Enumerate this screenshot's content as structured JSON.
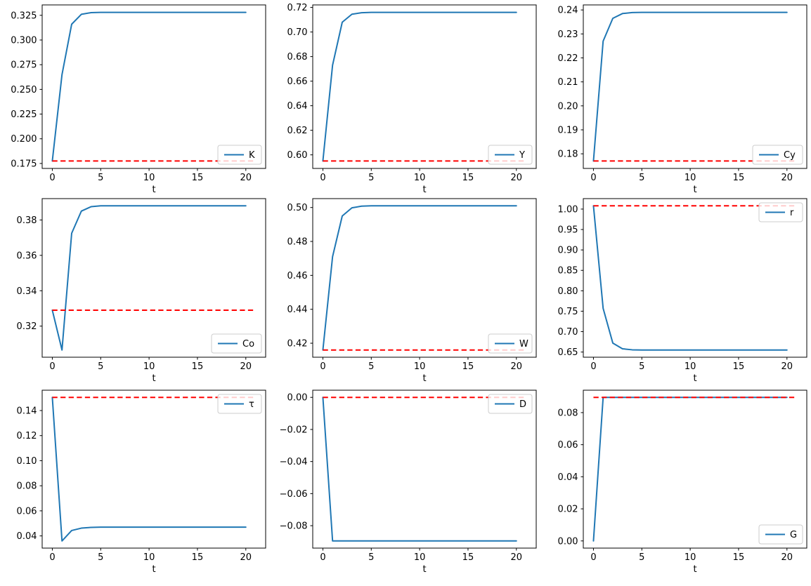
{
  "chart_data": {
    "type": "line",
    "xlabel": "t",
    "x": [
      0,
      1,
      2,
      3,
      4,
      5,
      6,
      7,
      8,
      9,
      10,
      11,
      12,
      13,
      14,
      15,
      16,
      17,
      18,
      19,
      20
    ],
    "xticks": [
      0,
      5,
      10,
      15,
      20
    ],
    "xlim": [
      -1.05,
      22.05
    ],
    "ref_line_x": [
      0,
      21
    ],
    "line_color": "#1f77b4",
    "ref_color": "#ff0000",
    "legend_order": [
      "series",
      "reference"
    ],
    "subplots": [
      {
        "name": "K",
        "legend_label": "K",
        "legend_loc": "lower right",
        "ydecimals": 3,
        "yticks": [
          0.175,
          0.2,
          0.225,
          0.25,
          0.275,
          0.3,
          0.325
        ],
        "ylim": [
          0.16998,
          0.33553
        ],
        "ref": 0.1775,
        "values": [
          0.1775,
          0.265,
          0.316,
          0.326,
          0.3277,
          0.328,
          0.328,
          0.328,
          0.328,
          0.328,
          0.328,
          0.328,
          0.328,
          0.328,
          0.328,
          0.328,
          0.328,
          0.328,
          0.328,
          0.328,
          0.328
        ]
      },
      {
        "name": "Y",
        "legend_label": "Y",
        "legend_loc": "lower right",
        "ydecimals": 2,
        "yticks": [
          0.6,
          0.62,
          0.64,
          0.66,
          0.68,
          0.7,
          0.72
        ],
        "ylim": [
          0.58895,
          0.72205
        ],
        "ref": 0.595,
        "values": [
          0.595,
          0.673,
          0.708,
          0.7145,
          0.7157,
          0.716,
          0.716,
          0.716,
          0.716,
          0.716,
          0.716,
          0.716,
          0.716,
          0.716,
          0.716,
          0.716,
          0.716,
          0.716,
          0.716,
          0.716,
          0.716
        ]
      },
      {
        "name": "Cy",
        "legend_label": "Cy",
        "legend_loc": "lower right",
        "ydecimals": 2,
        "yticks": [
          0.18,
          0.19,
          0.2,
          0.21,
          0.22,
          0.23,
          0.24
        ],
        "ylim": [
          0.1739,
          0.2421
        ],
        "ref": 0.177,
        "values": [
          0.177,
          0.227,
          0.2365,
          0.2385,
          0.2389,
          0.239,
          0.239,
          0.239,
          0.239,
          0.239,
          0.239,
          0.239,
          0.239,
          0.239,
          0.239,
          0.239,
          0.239,
          0.239,
          0.239,
          0.239,
          0.239
        ]
      },
      {
        "name": "Co",
        "legend_label": "Co",
        "legend_loc": "lower right",
        "ydecimals": 2,
        "yticks": [
          0.32,
          0.34,
          0.36,
          0.38
        ],
        "ylim": [
          0.302425,
          0.392075
        ],
        "ref": 0.329,
        "values": [
          0.329,
          0.3065,
          0.3725,
          0.385,
          0.3875,
          0.388,
          0.388,
          0.388,
          0.388,
          0.388,
          0.388,
          0.388,
          0.388,
          0.388,
          0.388,
          0.388,
          0.388,
          0.388,
          0.388,
          0.388,
          0.388
        ]
      },
      {
        "name": "W",
        "legend_label": "W",
        "legend_loc": "lower right",
        "ydecimals": 2,
        "yticks": [
          0.42,
          0.44,
          0.46,
          0.48,
          0.5
        ],
        "ylim": [
          0.41175,
          0.50525
        ],
        "ref": 0.416,
        "values": [
          0.416,
          0.471,
          0.495,
          0.4998,
          0.5008,
          0.501,
          0.501,
          0.501,
          0.501,
          0.501,
          0.501,
          0.501,
          0.501,
          0.501,
          0.501,
          0.501,
          0.501,
          0.501,
          0.501,
          0.501,
          0.501
        ]
      },
      {
        "name": "r",
        "legend_label": "r",
        "legend_loc": "upper right",
        "ydecimals": 2,
        "yticks": [
          0.65,
          0.7,
          0.75,
          0.8,
          0.85,
          0.9,
          0.95,
          1.0
        ],
        "ylim": [
          0.63735,
          1.02565
        ],
        "ref": 1.008,
        "values": [
          1.008,
          0.757,
          0.672,
          0.658,
          0.6555,
          0.655,
          0.655,
          0.655,
          0.655,
          0.655,
          0.655,
          0.655,
          0.655,
          0.655,
          0.655,
          0.655,
          0.655,
          0.655,
          0.655,
          0.655,
          0.655
        ]
      },
      {
        "name": "τ",
        "legend_label": "τ",
        "legend_loc": "upper right",
        "ydecimals": 2,
        "yticks": [
          0.04,
          0.06,
          0.08,
          0.1,
          0.12,
          0.14
        ],
        "ylim": [
          0.030275,
          0.156225
        ],
        "ref": 0.1505,
        "values": [
          0.1505,
          0.036,
          0.0443,
          0.0462,
          0.0468,
          0.047,
          0.047,
          0.047,
          0.047,
          0.047,
          0.047,
          0.047,
          0.047,
          0.047,
          0.047,
          0.047,
          0.047,
          0.047,
          0.047,
          0.047,
          0.047
        ]
      },
      {
        "name": "D",
        "legend_label": "D",
        "legend_loc": "upper right",
        "ydecimals": 2,
        "yticks": [
          -0.08,
          -0.06,
          -0.04,
          -0.02,
          0.0
        ],
        "ylim": [
          -0.093975,
          0.004475
        ],
        "ref": 0.0,
        "values": [
          0.0,
          -0.0895,
          -0.0895,
          -0.0895,
          -0.0895,
          -0.0895,
          -0.0895,
          -0.0895,
          -0.0895,
          -0.0895,
          -0.0895,
          -0.0895,
          -0.0895,
          -0.0895,
          -0.0895,
          -0.0895,
          -0.0895,
          -0.0895,
          -0.0895,
          -0.0895,
          -0.0895
        ]
      },
      {
        "name": "G",
        "legend_label": "G",
        "legend_loc": "lower right",
        "ydecimals": 2,
        "yticks": [
          0.0,
          0.02,
          0.04,
          0.06,
          0.08
        ],
        "ylim": [
          -0.004475,
          0.093975
        ],
        "ref": 0.0895,
        "values": [
          0.0,
          0.0895,
          0.0895,
          0.0895,
          0.0895,
          0.0895,
          0.0895,
          0.0895,
          0.0895,
          0.0895,
          0.0895,
          0.0895,
          0.0895,
          0.0895,
          0.0895,
          0.0895,
          0.0895,
          0.0895,
          0.0895,
          0.0895,
          0.0895
        ]
      }
    ]
  }
}
